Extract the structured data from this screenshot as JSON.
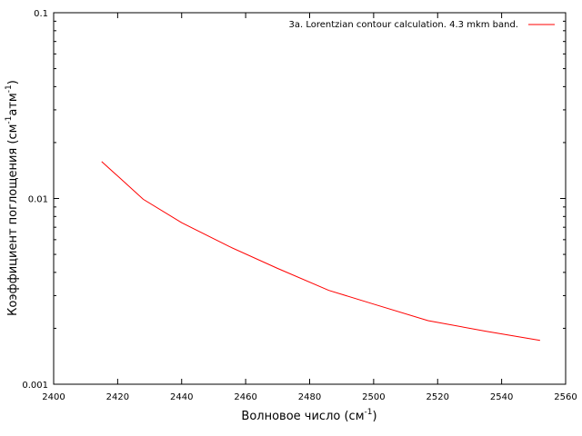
{
  "chart_data": {
    "type": "line",
    "title": "",
    "xlabel": "Волновое число (см",
    "xlabel_sup": "-1",
    "xlabel_end": ")",
    "ylabel": "Коэффициент поглощения (см",
    "ylabel_sup1": "-1",
    "ylabel_mid": "атм",
    "ylabel_sup2": "-1",
    "ylabel_end": ")",
    "xlim": [
      2400,
      2560
    ],
    "ylim": [
      0.001,
      0.1
    ],
    "y_scale": "log",
    "x_ticks": [
      "2400",
      "2420",
      "2440",
      "2460",
      "2480",
      "2500",
      "2520",
      "2540",
      "2560"
    ],
    "y_ticks": [
      "0.001",
      "0.01",
      "0.1"
    ],
    "legend_position": "top-right",
    "series": [
      {
        "name": "3a. Lorentzian contour calculation. 4.3 mkm band.",
        "color": "#ff0000",
        "x": [
          2415,
          2420,
          2428,
          2440,
          2455,
          2470,
          2486,
          2500,
          2517,
          2535,
          2552
        ],
        "y": [
          0.0158,
          0.0132,
          0.0099,
          0.0074,
          0.0055,
          0.0042,
          0.0032,
          0.0027,
          0.0022,
          0.00193,
          0.00172
        ]
      }
    ]
  }
}
